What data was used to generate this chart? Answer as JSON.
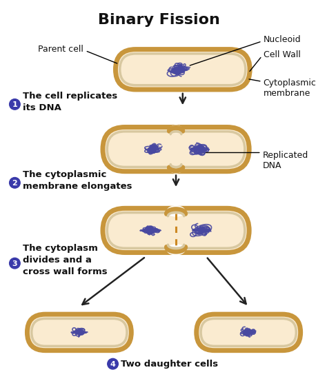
{
  "title": "Binary Fission",
  "title_fontsize": 16,
  "title_fontweight": "bold",
  "bg_color": "#ffffff",
  "cell_fill": "#faebd0",
  "cell_outer_color": "#c8963c",
  "cell_outer_lw": 5,
  "cell_inner_color": "#d8c8a0",
  "cell_inner_lw": 2.5,
  "dna_color": "#4848a0",
  "arrow_color": "#222222",
  "label_color": "#111111",
  "step_circle_color": "#3a3aaa",
  "step_num_color": "#ffffff",
  "dotted_wall_color": "#cc8822",
  "labels": {
    "parent_cell": "Parent cell",
    "nucleoid": "Nucleoid",
    "cell_wall": "Cell Wall",
    "cytoplasmic_membrane": "Cytoplasmic\nmembrane",
    "replicated_dna": "Replicated\nDNA",
    "step1": "The cell replicates\nits DNA",
    "step2": "The cytoplasmic\nmembrane elongates",
    "step3": "The cytoplasm\ndivides and a\ncross wall forms",
    "step4": "Two daughter cells"
  }
}
